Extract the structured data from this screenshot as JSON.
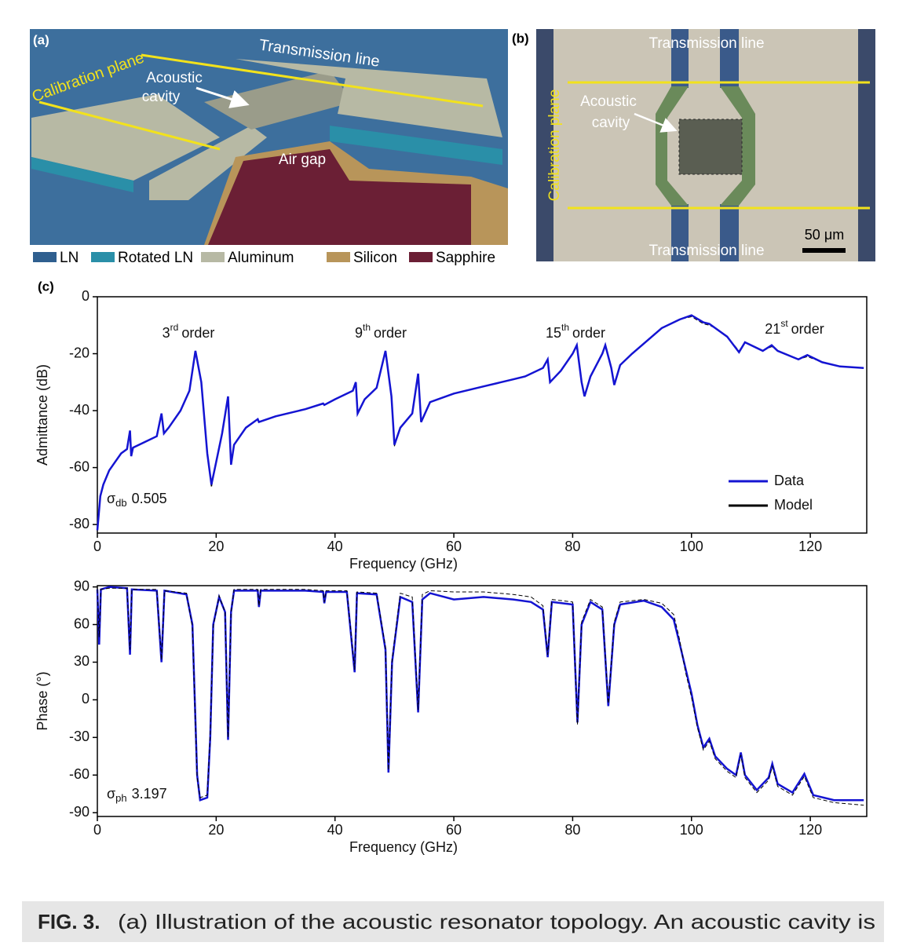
{
  "panel_a": {
    "label": "(a)",
    "calibration": "Calibration plane",
    "transmission": "Transmission line",
    "cavity_1": "Acoustic",
    "cavity_2": "cavity",
    "air_gap": "Air gap",
    "legend": [
      {
        "label": "LN",
        "color": "#2f5f8f"
      },
      {
        "label": "Rotated LN",
        "color": "#2a8fa8"
      },
      {
        "label": "Aluminum",
        "color": "#b7b9a4"
      },
      {
        "label": "Silicon",
        "color": "#b8955a"
      },
      {
        "label": "Sapphire",
        "color": "#6b1f35"
      }
    ]
  },
  "panel_b": {
    "label": "(b)",
    "transmission_top": "Transmission line",
    "transmission_bottom": "Transmission line",
    "calibration": "Calibration plane",
    "cavity_1": "Acoustic",
    "cavity_2": "cavity",
    "scale": "50 μm"
  },
  "panel_c_label": "(c)",
  "chart_data": [
    {
      "type": "line",
      "xlabel": "Frequency (GHz)",
      "ylabel": "Admittance (dB)",
      "xlim": [
        0,
        129.5
      ],
      "ylim": [
        -83,
        0
      ],
      "xticks": [
        0,
        20,
        40,
        60,
        80,
        100,
        120
      ],
      "yticks": [
        0,
        -20,
        -40,
        -60,
        -80
      ],
      "legend": "lower right",
      "annotations": [
        {
          "base": "3",
          "sup": "rd",
          "rest": "order"
        },
        {
          "base": "9",
          "sup": "th",
          "rest": "order"
        },
        {
          "base": "15",
          "sup": "th",
          "rest": "order"
        },
        {
          "base": "21",
          "sup": "st",
          "rest": "order"
        }
      ],
      "sigma": {
        "symbol": "σ",
        "sub": "db",
        "value": 0.505
      },
      "x": [
        0,
        0.5,
        1,
        2,
        3,
        4,
        5,
        5.5,
        5.7,
        6,
        8,
        10,
        10.8,
        11.2,
        12,
        14,
        15.5,
        16.5,
        17.5,
        18.5,
        19.2,
        20,
        21,
        22,
        22.5,
        23,
        25,
        27,
        27.2,
        30,
        35,
        38,
        38.2,
        40,
        43,
        43.5,
        43.8,
        45,
        47,
        48.5,
        49.5,
        50,
        51,
        53,
        54,
        54.5,
        56,
        60,
        65,
        70,
        72,
        75,
        75.8,
        76.2,
        78,
        80,
        80.7,
        81.5,
        82,
        83,
        85,
        85.5,
        86.5,
        87,
        88,
        90,
        95,
        98,
        100,
        102,
        103,
        104,
        106,
        108,
        109,
        112,
        113.5,
        114.5,
        118,
        119.5,
        122,
        125,
        129
      ],
      "series": [
        {
          "name": "Data",
          "color": "#1414d2",
          "values": [
            -82,
            -70,
            -66,
            -61,
            -58,
            -55,
            -53.5,
            -47,
            -56,
            -53,
            -51,
            -49,
            -41,
            -48,
            -46,
            -40,
            -33,
            -19,
            -30,
            -55,
            -66,
            -58,
            -48,
            -35,
            -59,
            -52,
            -46,
            -43,
            -44,
            -42,
            -39.5,
            -37.5,
            -38,
            -36,
            -33,
            -30,
            -41,
            -36,
            -32,
            -19,
            -35,
            -52,
            -46,
            -41,
            -27,
            -44,
            -37,
            -34,
            -31.5,
            -29,
            -28,
            -25,
            -22,
            -30,
            -26,
            -20,
            -17,
            -30,
            -35,
            -28,
            -20,
            -17,
            -25,
            -31,
            -24,
            -20,
            -11,
            -8,
            -6.5,
            -9,
            -9.5,
            -11,
            -14,
            -19.5,
            -16,
            -19,
            -17,
            -19,
            -22,
            -20.5,
            -23,
            -24.5,
            -25
          ]
        },
        {
          "name": "Model",
          "color": "#000000",
          "values": [
            -82,
            -70,
            -66,
            -61,
            -58,
            -55,
            -53.5,
            -47.5,
            -56,
            -53,
            -51,
            -49,
            -41.5,
            -48,
            -46,
            -40,
            -33,
            -19.5,
            -30,
            -55,
            -67,
            -58,
            -48,
            -35.5,
            -59,
            -52,
            -46,
            -43,
            -44,
            -42,
            -39.5,
            -37.5,
            -38,
            -36,
            -33,
            -30.5,
            -41,
            -36,
            -32,
            -19.5,
            -35,
            -52.5,
            -46,
            -41,
            -27.5,
            -44,
            -37,
            -34,
            -31.5,
            -29,
            -28,
            -25,
            -22.5,
            -30,
            -26,
            -20,
            -17.5,
            -30,
            -35,
            -28,
            -20,
            -17.5,
            -25,
            -31,
            -24,
            -20,
            -11,
            -8,
            -7,
            -9.5,
            -10,
            -11,
            -14,
            -19,
            -16,
            -19,
            -17.5,
            -19,
            -22,
            -21,
            -23,
            -24.5,
            -25
          ]
        }
      ]
    },
    {
      "type": "line",
      "xlabel": "Frequency (GHz)",
      "ylabel": "Phase (°)",
      "xlim": [
        0,
        129.5
      ],
      "ylim": [
        -93,
        91
      ],
      "xticks": [
        0,
        20,
        40,
        60,
        80,
        100,
        120
      ],
      "yticks": [
        90,
        60,
        30,
        0,
        -30,
        -60,
        -90
      ],
      "sigma": {
        "symbol": "σ",
        "sub": "ph",
        "value": 3.197
      },
      "x": [
        0,
        0.3,
        0.6,
        2,
        5,
        5.5,
        5.8,
        10,
        10.8,
        11.3,
        15,
        16,
        16.8,
        17.3,
        18.5,
        19,
        19.5,
        20.5,
        21.5,
        22,
        22.5,
        23,
        27,
        27.2,
        27.5,
        35,
        38,
        38.2,
        38.5,
        42,
        43.3,
        43.7,
        47,
        48.5,
        49,
        49.6,
        51,
        53,
        54,
        54.7,
        56,
        60,
        65,
        70,
        73,
        75,
        75.8,
        76.5,
        80,
        80.8,
        81.5,
        83,
        85,
        86,
        87,
        88,
        92,
        95,
        97,
        98,
        99,
        100,
        101,
        102,
        103,
        104,
        106,
        107.5,
        108.3,
        109,
        111,
        113,
        113.6,
        114.5,
        117,
        119,
        120.5,
        124,
        129
      ],
      "series": [
        {
          "color": "#1414d2",
          "values": [
            88,
            44,
            88,
            90,
            89,
            36,
            88,
            87,
            30,
            87,
            84,
            60,
            -60,
            -80,
            -78,
            -30,
            60,
            82,
            70,
            -32,
            70,
            87,
            87,
            74,
            87,
            87,
            86,
            77,
            86,
            86,
            22,
            85,
            84,
            40,
            -58,
            30,
            82,
            78,
            -10,
            80,
            85,
            80,
            82,
            80,
            78,
            72,
            34,
            78,
            76,
            -18,
            60,
            78,
            72,
            -5,
            60,
            76,
            79,
            74,
            64,
            45,
            25,
            5,
            -20,
            -38,
            -31,
            -45,
            -55,
            -60,
            -42,
            -60,
            -72,
            -62,
            -51,
            -67,
            -74,
            -59,
            -76,
            -80,
            -80
          ]
        },
        {
          "color": "#000000",
          "values": [
            88,
            50,
            88,
            89,
            89,
            40,
            88,
            88,
            32,
            87,
            85,
            58,
            -62,
            -78,
            -76,
            -28,
            58,
            83,
            70,
            -30,
            70,
            88,
            88,
            75,
            88,
            88,
            87,
            78,
            87,
            87,
            24,
            86,
            85,
            42,
            -56,
            32,
            85,
            82,
            -8,
            84,
            87,
            86,
            86,
            84,
            82,
            75,
            36,
            80,
            78,
            -20,
            62,
            80,
            74,
            -3,
            62,
            78,
            80,
            77,
            68,
            48,
            22,
            2,
            -22,
            -40,
            -33,
            -47,
            -57,
            -62,
            -44,
            -62,
            -74,
            -64,
            -53,
            -69,
            -76,
            -61,
            -78,
            -82,
            -84
          ]
        }
      ]
    }
  ],
  "caption": {
    "lead": "FIG. 3.",
    "text": "(a) Illustration of the acoustic resonator topology. An acoustic cavity is"
  }
}
